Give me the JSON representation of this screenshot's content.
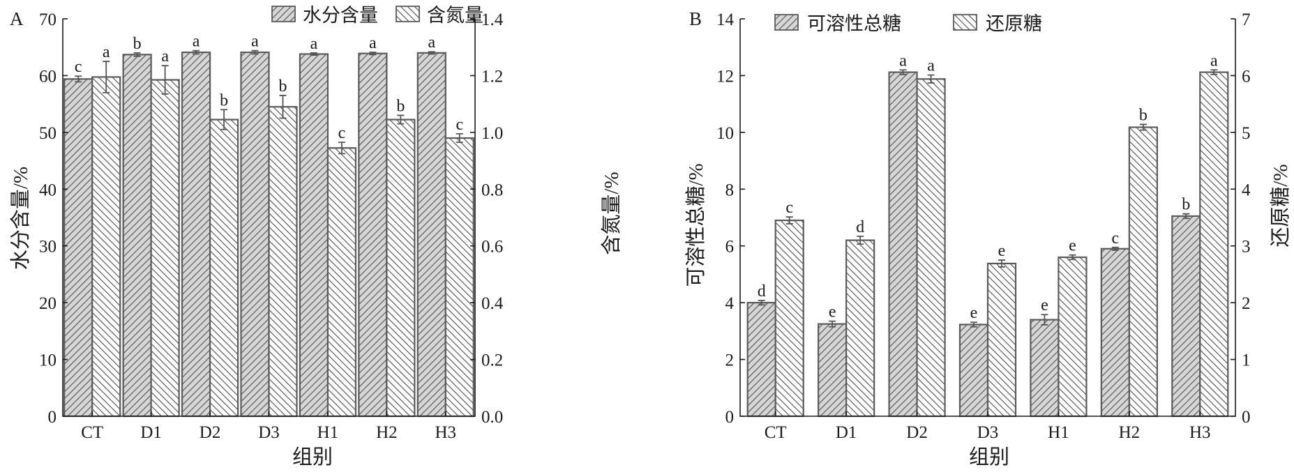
{
  "colors": {
    "bar_fill": "#d6d6d6",
    "hatch": "#5a5a5a",
    "bar_edge": "#5a5a5a",
    "axis": "#1a1a1a"
  },
  "chart_data": [
    {
      "type": "bar",
      "panel": "A",
      "xlabel": "组别",
      "categories": [
        "CT",
        "D1",
        "D2",
        "D3",
        "H1",
        "H2",
        "H3"
      ],
      "left_axis": {
        "label": "水分含量/%",
        "ylim": [
          0,
          70
        ],
        "ticks": [
          "0",
          "10",
          "20",
          "30",
          "40",
          "50",
          "60",
          "70"
        ]
      },
      "right_axis": {
        "label": "含氮量/%",
        "ylim": [
          0,
          1.4
        ],
        "ticks": [
          "0.0",
          "0.2",
          "0.4",
          "0.6",
          "0.8",
          "1.0",
          "1.2",
          "1.4"
        ]
      },
      "series": [
        {
          "name": "水分含量",
          "axis": "left",
          "pattern": "forward-hatch",
          "values": [
            59.4,
            63.7,
            64.1,
            64.1,
            63.8,
            63.9,
            64.0
          ],
          "errors": [
            0.5,
            0.3,
            0.3,
            0.3,
            0.2,
            0.2,
            0.2
          ],
          "labels": [
            "c",
            "b",
            "a",
            "a",
            "a",
            "a",
            "a"
          ]
        },
        {
          "name": "含氮量",
          "axis": "right",
          "pattern": "back-hatch",
          "values": [
            1.195,
            1.185,
            1.045,
            1.09,
            0.945,
            1.045,
            0.98
          ],
          "errors": [
            0.055,
            0.05,
            0.035,
            0.04,
            0.02,
            0.015,
            0.015
          ],
          "labels": [
            "a",
            "a",
            "b",
            "b",
            "c",
            "b",
            "c"
          ]
        }
      ],
      "legend_position": "top-center"
    },
    {
      "type": "bar",
      "panel": "B",
      "xlabel": "组别",
      "categories": [
        "CT",
        "D1",
        "D2",
        "D3",
        "H1",
        "H2",
        "H3"
      ],
      "left_axis": {
        "label": "可溶性总糖/%",
        "ylim": [
          0,
          14
        ],
        "ticks": [
          "0",
          "2",
          "4",
          "6",
          "8",
          "10",
          "12",
          "14"
        ]
      },
      "right_axis": {
        "label": "还原糖/%",
        "ylim": [
          0,
          7
        ],
        "ticks": [
          "0",
          "1",
          "2",
          "3",
          "4",
          "5",
          "6",
          "7"
        ]
      },
      "series": [
        {
          "name": "可溶性总糖",
          "axis": "left",
          "pattern": "forward-hatch",
          "values": [
            4.0,
            3.25,
            12.12,
            3.23,
            3.4,
            5.9,
            7.05
          ],
          "errors": [
            0.08,
            0.1,
            0.08,
            0.08,
            0.18,
            0.05,
            0.08
          ],
          "labels": [
            "d",
            "e",
            "a",
            "e",
            "e",
            "c",
            "b"
          ]
        },
        {
          "name": "还原糖",
          "axis": "right",
          "pattern": "back-hatch",
          "values": [
            3.45,
            3.1,
            5.94,
            2.69,
            2.8,
            5.09,
            6.06
          ],
          "errors": [
            0.06,
            0.07,
            0.07,
            0.06,
            0.04,
            0.05,
            0.04
          ],
          "labels": [
            "c",
            "d",
            "a",
            "e",
            "e",
            "b",
            "a"
          ]
        }
      ],
      "legend_position": "top-left"
    }
  ]
}
